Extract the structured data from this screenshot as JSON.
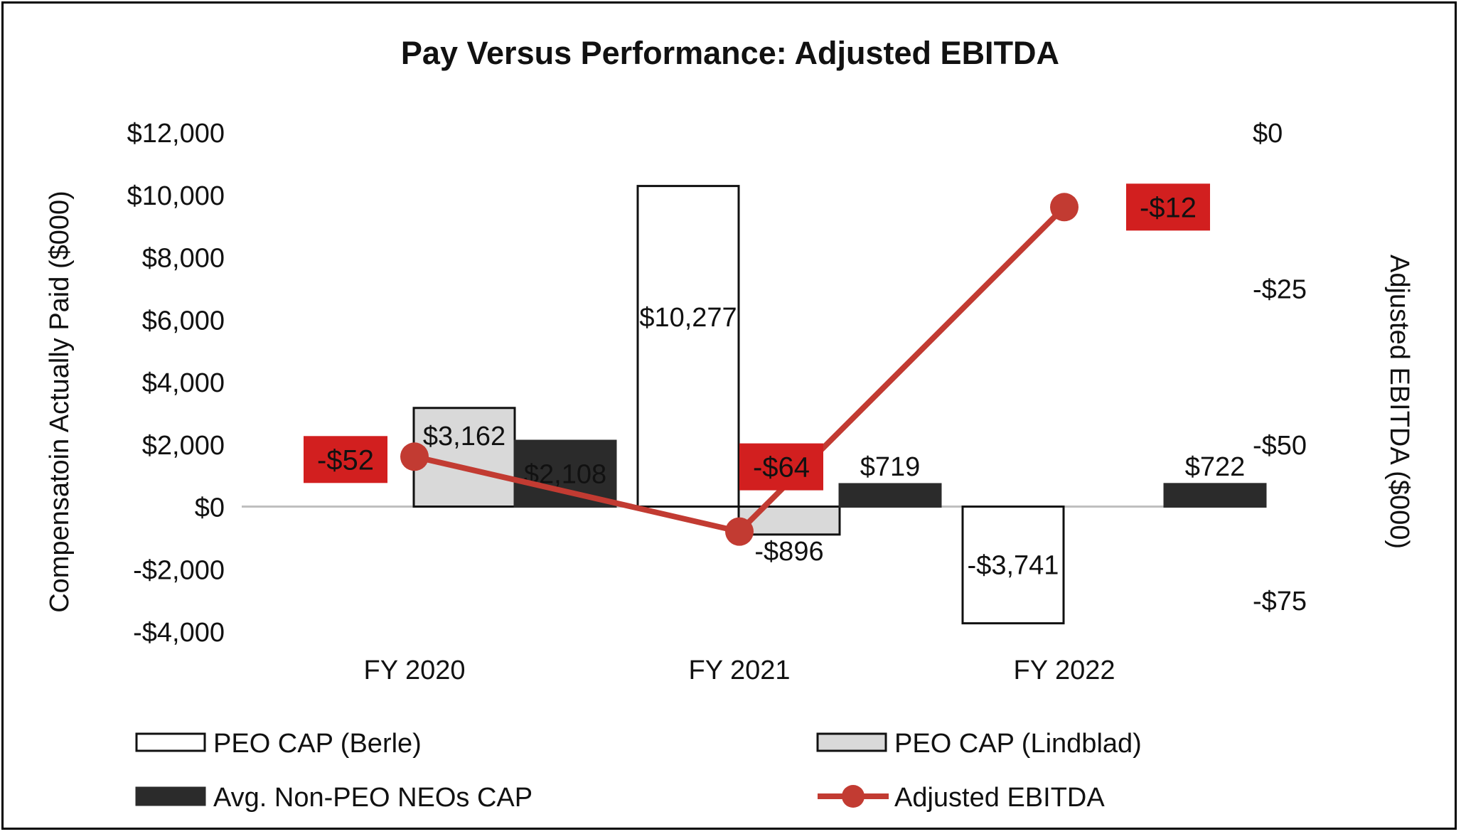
{
  "chart_data": {
    "type": "bar",
    "title": "Pay Versus Performance: Adjusted EBITDA",
    "categories": [
      "FY 2020",
      "FY 2021",
      "FY 2022"
    ],
    "ylabel": "Compensatoin Actually Paid ($000)",
    "y2label": "Adjusted EBITDA ($000)",
    "ylim": [
      -4000,
      12000
    ],
    "y2lim": [
      -80,
      0
    ],
    "yticks": [
      -4000,
      -2000,
      0,
      2000,
      4000,
      6000,
      8000,
      10000,
      12000
    ],
    "yticklabels": [
      "-$4,000",
      "-$2,000",
      "$0",
      "$2,000",
      "$4,000",
      "$6,000",
      "$8,000",
      "$10,000",
      "$12,000"
    ],
    "y2ticks": [
      -75,
      -50,
      -25,
      0
    ],
    "y2ticklabels": [
      "-$75",
      "-$50",
      "-$25",
      "$0"
    ],
    "series": [
      {
        "name": "PEO CAP (Berle)",
        "kind": "bar",
        "color": "#ffffff",
        "stroke": "#111111",
        "values": [
          null,
          10277,
          -3741
        ],
        "labels": [
          "",
          "$10,277",
          "-$3,741"
        ]
      },
      {
        "name": "PEO CAP (Lindblad)",
        "kind": "bar",
        "color": "#d9d9d9",
        "stroke": "#111111",
        "values": [
          3162,
          -896,
          null
        ],
        "labels": [
          "$3,162",
          "-$896",
          ""
        ]
      },
      {
        "name": "Avg. Non-PEO NEOs CAP",
        "kind": "bar",
        "color": "#2b2b2b",
        "stroke": "#2b2b2b",
        "values": [
          2108,
          719,
          722
        ],
        "labels": [
          "$2,108",
          "$719",
          "$722"
        ]
      },
      {
        "name": "Adjusted EBITDA",
        "kind": "line",
        "axis": "right",
        "color": "#c23b32",
        "values": [
          -52,
          -64,
          -12
        ],
        "labels": [
          "-$52",
          "-$64",
          "-$12"
        ]
      }
    ],
    "legend_position": "bottom",
    "label_box_color": "#d21f1f"
  }
}
